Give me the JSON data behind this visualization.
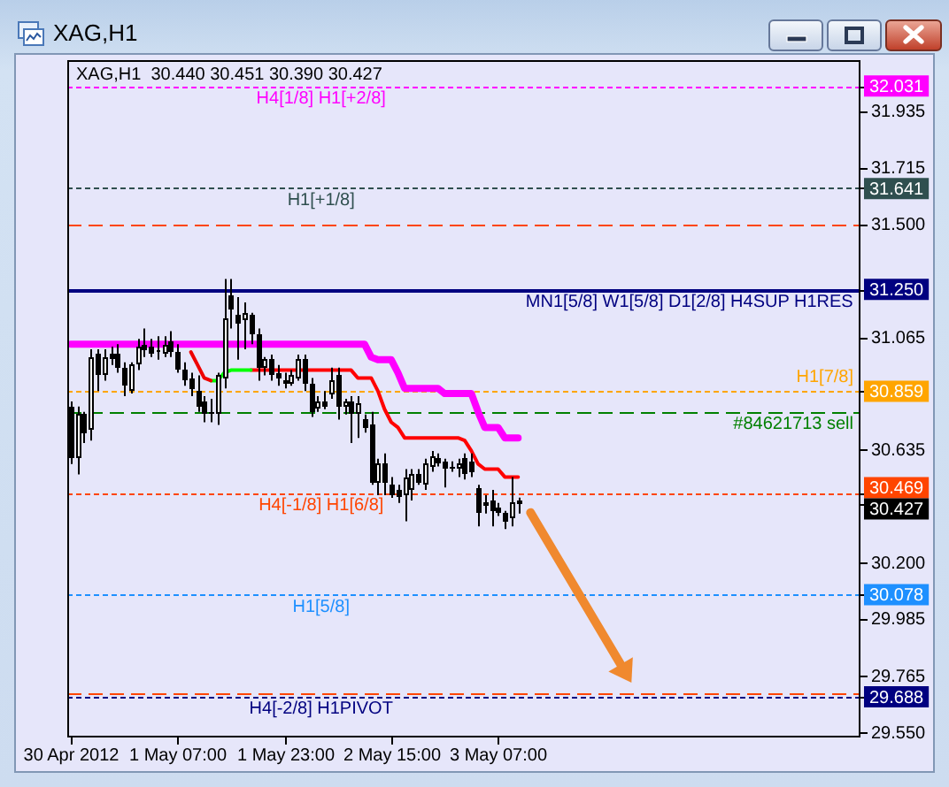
{
  "chart_data": {
    "type": "candlestick",
    "title": "XAG,H1",
    "subtitle": "XAG,H1  30.440 30.451 30.390 30.427",
    "x": [
      "2012-04-30T15:00",
      "2012-04-30T16:00",
      "2012-04-30T17:00",
      "2012-04-30T18:00",
      "2012-04-30T19:00",
      "2012-04-30T20:00",
      "2012-04-30T21:00",
      "2012-04-30T22:00",
      "2012-04-30T23:00",
      "2012-05-01T00:00",
      "2012-05-01T01:00",
      "2012-05-01T02:00",
      "2012-05-01T03:00",
      "2012-05-01T04:00",
      "2012-05-01T05:00",
      "2012-05-01T06:00",
      "2012-05-01T07:00",
      "2012-05-01T08:00",
      "2012-05-01T09:00",
      "2012-05-01T10:00",
      "2012-05-01T11:00",
      "2012-05-01T12:00",
      "2012-05-01T13:00",
      "2012-05-01T14:00",
      "2012-05-01T15:00",
      "2012-05-01T16:00",
      "2012-05-01T17:00",
      "2012-05-01T18:00",
      "2012-05-01T19:00",
      "2012-05-01T20:00",
      "2012-05-01T21:00",
      "2012-05-01T22:00",
      "2012-05-01T23:00",
      "2012-05-02T00:00",
      "2012-05-02T01:00",
      "2012-05-02T02:00",
      "2012-05-02T03:00",
      "2012-05-02T04:00",
      "2012-05-02T05:00",
      "2012-05-02T06:00",
      "2012-05-02T07:00",
      "2012-05-02T08:00",
      "2012-05-02T09:00",
      "2012-05-02T10:00",
      "2012-05-02T11:00",
      "2012-05-02T12:00",
      "2012-05-02T13:00",
      "2012-05-02T14:00",
      "2012-05-02T15:00",
      "2012-05-02T16:00",
      "2012-05-02T17:00",
      "2012-05-02T18:00",
      "2012-05-02T19:00",
      "2012-05-02T20:00",
      "2012-05-02T21:00",
      "2012-05-02T22:00",
      "2012-05-02T23:00",
      "2012-05-03T00:00",
      "2012-05-03T01:00",
      "2012-05-03T02:00",
      "2012-05-03T03:00",
      "2012-05-03T04:00",
      "2012-05-03T05:00",
      "2012-05-03T06:00",
      "2012-05-03T07:00",
      "2012-05-03T08:00",
      "2012-05-03T09:00",
      "2012-05-03T10:00"
    ],
    "ohlc": [
      [
        30.8,
        30.82,
        30.58,
        30.6
      ],
      [
        30.6,
        30.8,
        30.54,
        30.77
      ],
      [
        30.77,
        30.78,
        30.66,
        30.7
      ],
      [
        30.71,
        31.02,
        30.67,
        30.99
      ],
      [
        31.0,
        31.02,
        30.86,
        30.92
      ],
      [
        30.92,
        31.02,
        30.9,
        30.99
      ],
      [
        31.0,
        31.03,
        30.96,
        30.98
      ],
      [
        31.0,
        31.04,
        30.93,
        30.95
      ],
      [
        30.95,
        30.97,
        30.84,
        30.88
      ],
      [
        30.86,
        30.97,
        30.85,
        30.96
      ],
      [
        30.96,
        31.06,
        30.94,
        31.03
      ],
      [
        31.04,
        31.1,
        30.99,
        31.02
      ],
      [
        31.03,
        31.06,
        30.99,
        31.0
      ],
      [
        31.01,
        31.07,
        30.98,
        31.02
      ],
      [
        31.0,
        31.07,
        30.99,
        31.04
      ],
      [
        31.05,
        31.09,
        30.99,
        31.01
      ],
      [
        31.01,
        31.04,
        30.93,
        30.94
      ],
      [
        30.94,
        30.97,
        30.88,
        30.9
      ],
      [
        30.91,
        30.93,
        30.84,
        30.87
      ],
      [
        30.86,
        30.92,
        30.78,
        30.8
      ],
      [
        30.82,
        30.84,
        30.74,
        30.77
      ],
      [
        30.78,
        30.83,
        30.74,
        30.77
      ],
      [
        30.77,
        30.93,
        30.73,
        30.92
      ],
      [
        30.91,
        31.29,
        30.87,
        31.14
      ],
      [
        31.23,
        31.29,
        31.1,
        31.17
      ],
      [
        31.15,
        31.22,
        30.98,
        31.12
      ],
      [
        31.13,
        31.2,
        31.02,
        31.16
      ],
      [
        31.15,
        31.16,
        31.04,
        31.08
      ],
      [
        31.08,
        31.1,
        30.9,
        30.95
      ],
      [
        30.95,
        30.99,
        30.92,
        30.98
      ],
      [
        30.98,
        31.0,
        30.9,
        30.92
      ],
      [
        30.93,
        30.96,
        30.88,
        30.91
      ],
      [
        30.9,
        30.93,
        30.87,
        30.89
      ],
      [
        30.89,
        30.94,
        30.88,
        30.92
      ],
      [
        30.91,
        31.0,
        30.9,
        30.98
      ],
      [
        30.98,
        31.0,
        30.86,
        30.89
      ],
      [
        30.89,
        30.91,
        30.76,
        30.78
      ],
      [
        30.79,
        30.84,
        30.78,
        30.82
      ],
      [
        30.82,
        30.86,
        30.79,
        30.8
      ],
      [
        30.85,
        30.95,
        30.83,
        30.9
      ],
      [
        30.92,
        30.95,
        30.75,
        30.8
      ],
      [
        30.8,
        30.83,
        30.77,
        30.82
      ],
      [
        30.82,
        30.84,
        30.66,
        30.77
      ],
      [
        30.77,
        30.84,
        30.68,
        30.81
      ],
      [
        30.75,
        30.77,
        30.7,
        30.72
      ],
      [
        30.73,
        30.78,
        30.5,
        30.51
      ],
      [
        30.51,
        30.6,
        30.46,
        30.58
      ],
      [
        30.58,
        30.62,
        30.46,
        30.51
      ],
      [
        30.5,
        30.53,
        30.45,
        30.46
      ],
      [
        30.48,
        30.5,
        30.43,
        30.45
      ],
      [
        30.46,
        30.56,
        30.36,
        30.53
      ],
      [
        30.48,
        30.56,
        30.44,
        30.54
      ],
      [
        30.54,
        30.56,
        30.5,
        30.51
      ],
      [
        30.5,
        30.6,
        30.48,
        30.58
      ],
      [
        30.57,
        30.63,
        30.55,
        30.61
      ],
      [
        30.6,
        30.62,
        30.57,
        30.58
      ],
      [
        30.59,
        30.6,
        30.49,
        30.56
      ],
      [
        30.57,
        30.59,
        30.55,
        30.56
      ],
      [
        30.56,
        30.6,
        30.53,
        30.58
      ],
      [
        30.6,
        30.62,
        30.52,
        30.54
      ],
      [
        30.59,
        30.62,
        30.53,
        30.55
      ],
      [
        30.49,
        30.5,
        30.34,
        30.39
      ],
      [
        30.42,
        30.46,
        30.39,
        30.43
      ],
      [
        30.44,
        30.48,
        30.34,
        30.4
      ],
      [
        30.41,
        30.43,
        30.38,
        30.39
      ],
      [
        30.39,
        30.4,
        30.33,
        30.36
      ],
      [
        30.37,
        30.53,
        30.34,
        30.43
      ],
      [
        30.44,
        30.451,
        30.39,
        30.427
      ]
    ],
    "colors": [
      "#000000",
      "#ffffff",
      "#000000",
      "#ffffff",
      "#000000",
      "#ffffff",
      "#000000",
      "#000000",
      "#000000",
      "#ffffff",
      "#ffffff",
      "#000000",
      "#000000",
      "#ffffff",
      "#ffffff",
      "#000000",
      "#000000",
      "#000000",
      "#000000",
      "#000000",
      "#000000",
      "#000000",
      "#ffffff",
      "#ffffff",
      "#000000",
      "#000000",
      "#ffffff",
      "#000000",
      "#000000",
      "#ffffff",
      "#000000",
      "#000000",
      "#000000",
      "#ffffff",
      "#ffffff",
      "#000000",
      "#000000",
      "#ffffff",
      "#000000",
      "#ffffff",
      "#000000",
      "#ffffff",
      "#000000",
      "#ffffff",
      "#000000",
      "#000000",
      "#ffffff",
      "#000000",
      "#000000",
      "#000000",
      "#ffffff",
      "#ffffff",
      "#000000",
      "#ffffff",
      "#ffffff",
      "#000000",
      "#000000",
      "#000000",
      "#ffffff",
      "#000000",
      "#000000",
      "#000000",
      "#ffffff",
      "#000000",
      "#000000",
      "#000000",
      "#ffffff",
      "#000000"
    ],
    "series": [
      {
        "type": "line",
        "color": "#ff00ff",
        "values": [
          31.04,
          31.04,
          31.04,
          31.04,
          31.04,
          31.04,
          31.04,
          31.04,
          31.04,
          31.04,
          31.04,
          31.04,
          31.04,
          31.04,
          31.04,
          31.04,
          31.04,
          31.04,
          31.04,
          31.04,
          31.04,
          31.04,
          31.04,
          31.04,
          31.04,
          31.04,
          31.04,
          31.04,
          31.04,
          31.04,
          31.04,
          31.04,
          31.04,
          31.04,
          31.04,
          31.04,
          31.04,
          31.04,
          31.04,
          31.04,
          31.04,
          31.04,
          31.04,
          31.04,
          31.04,
          30.99,
          30.98,
          30.98,
          30.98,
          30.93,
          30.87,
          30.87,
          30.87,
          30.87,
          30.87,
          30.87,
          30.85,
          30.85,
          30.85,
          30.85,
          30.85,
          30.78,
          30.72,
          30.72,
          30.72,
          30.68,
          30.68,
          30.68
        ]
      },
      {
        "type": "line",
        "color": "#ee0000",
        "x": [
          "2012-05-01T09:00",
          "2012-05-01T10:00",
          "2012-05-01T11:00",
          "2012-05-01T12:00"
        ],
        "values": [
          31.01,
          30.96,
          30.91,
          30.9
        ]
      },
      {
        "type": "line",
        "color": "#00ff00",
        "x": [
          "2012-05-01T12:00",
          "2012-05-01T13:00",
          "2012-05-01T14:00",
          "2012-05-01T15:00",
          "2012-05-01T16:00",
          "2012-05-01T17:00",
          "2012-05-01T18:00"
        ],
        "values": [
          30.9,
          30.9,
          30.93,
          30.94,
          30.94,
          30.94,
          30.94
        ]
      },
      {
        "type": "line",
        "color": "#ff0000",
        "x": [
          "2012-05-01T18:00",
          "2012-05-01T19:00",
          "2012-05-01T20:00",
          "2012-05-01T21:00",
          "2012-05-01T22:00",
          "2012-05-01T23:00",
          "2012-05-02T00:00",
          "2012-05-02T01:00",
          "2012-05-02T02:00",
          "2012-05-02T03:00",
          "2012-05-02T04:00",
          "2012-05-02T05:00",
          "2012-05-02T06:00",
          "2012-05-02T07:00",
          "2012-05-02T08:00",
          "2012-05-02T09:00",
          "2012-05-02T10:00",
          "2012-05-02T11:00",
          "2012-05-02T12:00",
          "2012-05-02T13:00",
          "2012-05-02T14:00",
          "2012-05-02T15:00",
          "2012-05-02T16:00",
          "2012-05-02T17:00",
          "2012-05-02T18:00",
          "2012-05-02T19:00",
          "2012-05-02T20:00",
          "2012-05-02T21:00",
          "2012-05-02T22:00",
          "2012-05-02T23:00",
          "2012-05-03T00:00",
          "2012-05-03T01:00",
          "2012-05-03T02:00",
          "2012-05-03T03:00",
          "2012-05-03T04:00",
          "2012-05-03T05:00",
          "2012-05-03T06:00",
          "2012-05-03T07:00",
          "2012-05-03T08:00",
          "2012-05-03T09:00",
          "2012-05-03T10:00"
        ],
        "values": [
          30.94,
          30.94,
          30.94,
          30.94,
          30.94,
          30.94,
          30.94,
          30.94,
          30.94,
          30.94,
          30.94,
          30.94,
          30.94,
          30.94,
          30.94,
          30.94,
          30.91,
          30.91,
          30.91,
          30.86,
          30.79,
          30.74,
          30.72,
          30.68,
          30.68,
          30.68,
          30.68,
          30.68,
          30.68,
          30.68,
          30.68,
          30.68,
          30.67,
          30.63,
          30.58,
          30.56,
          30.56,
          30.56,
          30.53,
          30.53,
          30.53
        ]
      }
    ],
    "xlim": [
      "2012-04-30T14:30",
      "2012-05-05T13:15"
    ],
    "xticks": [
      {
        "value": "2012-04-30T15:00",
        "label": "30 Apr 2012"
      },
      {
        "value": "2012-05-01T07:00",
        "label": "1 May 07:00"
      },
      {
        "value": "2012-05-01T23:00",
        "label": "1 May 23:00"
      },
      {
        "value": "2012-05-02T15:00",
        "label": "2 May 15:00"
      },
      {
        "value": "2012-05-03T07:00",
        "label": "3 May 07:00"
      }
    ],
    "ylim": [
      29.53,
      32.13
    ],
    "yticks": [
      32.031,
      31.935,
      31.715,
      31.641,
      {
        "value": 31.5,
        "label": "31.500"
      },
      {
        "value": 31.25,
        "label": "31.250"
      },
      31.065,
      30.859,
      30.635,
      30.469,
      30.427,
      {
        "value": 30.2,
        "label": "30.200"
      },
      30.078,
      29.985,
      29.765,
      29.688,
      {
        "value": 29.55,
        "label": "29.550"
      }
    ],
    "ref_lines": [
      {
        "axis": "y",
        "value": 32.031,
        "label": "H4[1/8] H1[+2/8]",
        "color": "#ff00ff",
        "line_style": "dotted"
      },
      {
        "axis": "y",
        "value": 31.641,
        "label": "H1[+1/8]",
        "color": "#2f4f4f",
        "line_style": "dotted"
      },
      {
        "axis": "y",
        "value": 31.5,
        "color": "#ff4500",
        "line_style": "dashed"
      },
      {
        "axis": "y",
        "value": 31.25,
        "label": "MN1[5/8] W1[5/8] D1[2/8] H4SUP H1RES",
        "color": "#000080",
        "line_style": "solid"
      },
      {
        "axis": "y",
        "value": 30.859,
        "label": "H1[7/8]",
        "color": "#ffa500",
        "line_style": "dotted"
      },
      {
        "axis": "y",
        "value": 30.78,
        "label": "#84621713 sell",
        "color": "#008000",
        "line_style": "dashed"
      },
      {
        "axis": "y",
        "value": 30.469,
        "label": "H4[-1/8] H1[6/8]",
        "color": "#ff4500",
        "line_style": "dotted"
      },
      {
        "axis": "y",
        "value": 30.078,
        "label": "H1[5/8]",
        "color": "#1e90ff",
        "line_style": "dotted"
      },
      {
        "axis": "y",
        "value": 29.688,
        "label": "H4[-2/8] H1PIVOT",
        "color": "#000080",
        "line_style": "dotted"
      },
      {
        "axis": "y",
        "value": 29.7,
        "color": "#ff4500",
        "line_style": "dashed"
      }
    ]
  }
}
